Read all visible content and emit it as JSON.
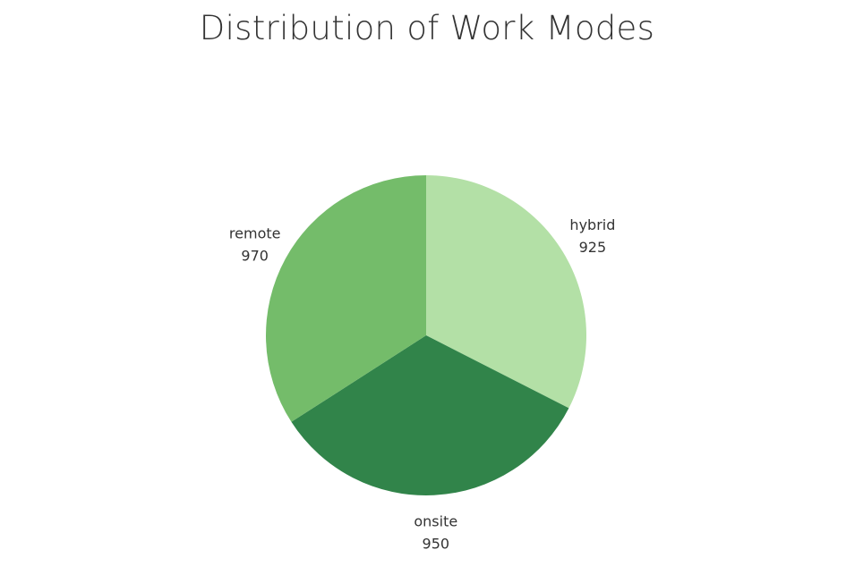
{
  "chart_data": {
    "type": "pie",
    "title": "Distribution of Work Modes",
    "slices": [
      {
        "label": "hybrid",
        "value": 925,
        "color": "#b3e0a6"
      },
      {
        "label": "onsite",
        "value": 950,
        "color": "#31844a"
      },
      {
        "label": "remote",
        "value": 970,
        "color": "#74bc6a"
      }
    ],
    "start_angle": "12 o'clock",
    "direction": "clockwise",
    "legend": "none"
  }
}
